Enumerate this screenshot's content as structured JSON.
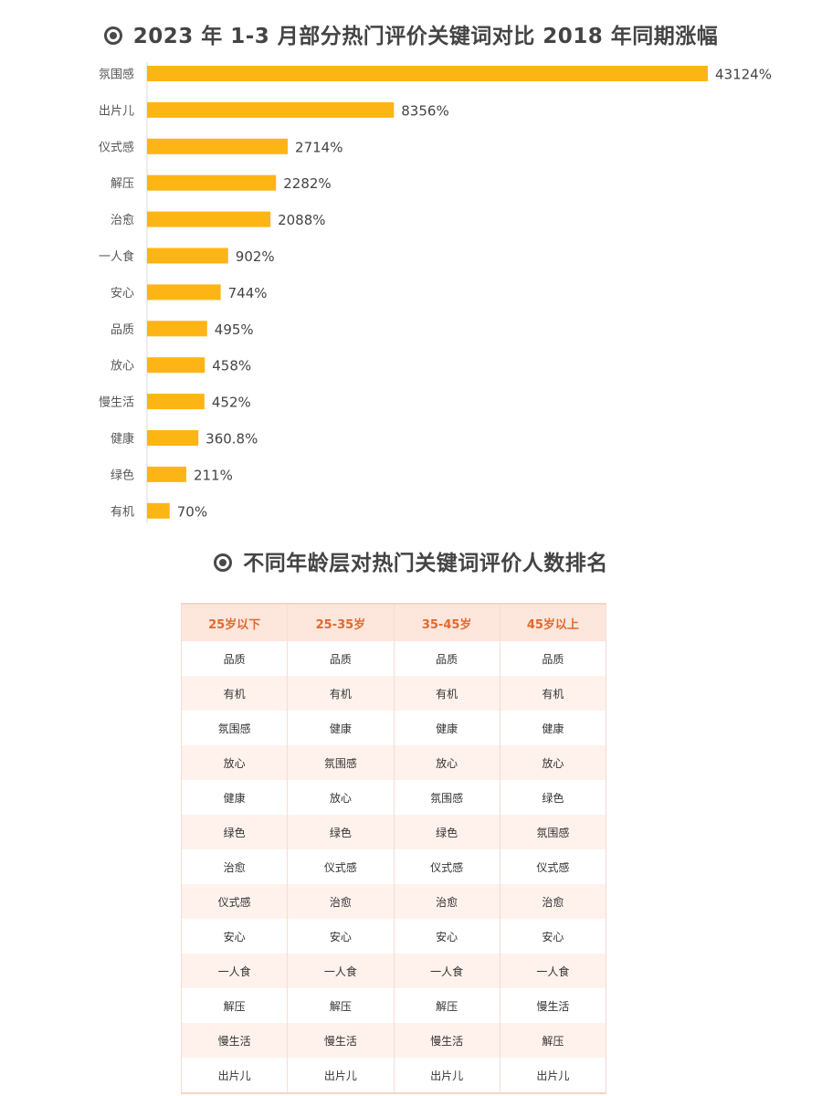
{
  "chart_data": [
    {
      "type": "bar",
      "orientation": "horizontal",
      "title": "2023 年 1-3 月部分热门评价关键词对比 2018 年同期涨幅",
      "categories": [
        "氛围感",
        "出片儿",
        "仪式感",
        "解压",
        "治愈",
        "一人食",
        "安心",
        "品质",
        "放心",
        "慢生活",
        "健康",
        "绿色",
        "有机"
      ],
      "values": [
        43124,
        8356,
        2714,
        2282,
        2088,
        902,
        744,
        495,
        458,
        452,
        360.8,
        211,
        70
      ],
      "value_labels": [
        "43124%",
        "8356%",
        "2714%",
        "2282%",
        "2088%",
        "902%",
        "744%",
        "495%",
        "458%",
        "452%",
        "360.8%",
        "211%",
        "70%"
      ],
      "unit": "%",
      "bar_color": "#fdb515",
      "grid": false,
      "legend": "none"
    },
    {
      "type": "table",
      "title": "不同年龄层对热门关键词评价人数排名",
      "columns": [
        "25岁以下",
        "25-35岁",
        "35-45岁",
        "45岁以上"
      ],
      "rows": [
        [
          "品质",
          "品质",
          "品质",
          "品质"
        ],
        [
          "有机",
          "有机",
          "有机",
          "有机"
        ],
        [
          "氛围感",
          "健康",
          "健康",
          "健康"
        ],
        [
          "放心",
          "氛围感",
          "放心",
          "放心"
        ],
        [
          "健康",
          "放心",
          "氛围感",
          "绿色"
        ],
        [
          "绿色",
          "绿色",
          "绿色",
          "氛围感"
        ],
        [
          "治愈",
          "仪式感",
          "仪式感",
          "仪式感"
        ],
        [
          "仪式感",
          "治愈",
          "治愈",
          "治愈"
        ],
        [
          "安心",
          "安心",
          "安心",
          "安心"
        ],
        [
          "一人食",
          "一人食",
          "一人食",
          "一人食"
        ],
        [
          "解压",
          "解压",
          "解压",
          "慢生活"
        ],
        [
          "慢生活",
          "慢生活",
          "慢生活",
          "解压"
        ],
        [
          "出片儿",
          "出片儿",
          "出片儿",
          "出片儿"
        ]
      ],
      "header_color": "#e06a2e",
      "header_bg": "#fde6dc",
      "stripe_bg": "#fff2ec"
    }
  ]
}
